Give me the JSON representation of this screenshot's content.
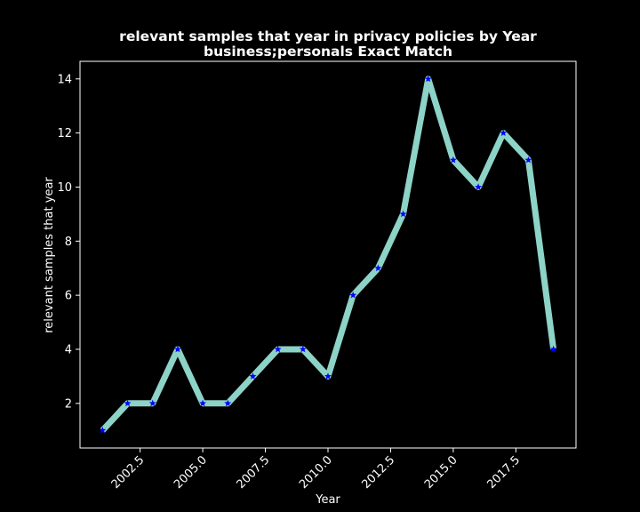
{
  "chart_data": {
    "type": "line",
    "title": "relevant samples that year in privacy policies by Year",
    "subtitle": "business;personals Exact Match",
    "xlabel": "Year",
    "ylabel": "relevant samples that year",
    "xlim": [
      2000.1,
      2019.9
    ],
    "ylim": [
      0.35,
      14.65
    ],
    "xticks": [
      2002.5,
      2005.0,
      2007.5,
      2010.0,
      2012.5,
      2015.0,
      2017.5
    ],
    "xtick_labels": [
      "2002.5",
      "2005.0",
      "2007.5",
      "2010.0",
      "2012.5",
      "2015.0",
      "2017.5"
    ],
    "yticks": [
      2,
      4,
      6,
      8,
      10,
      12,
      14
    ],
    "ytick_labels": [
      "2",
      "4",
      "6",
      "8",
      "10",
      "12",
      "14"
    ],
    "grid": false,
    "series": [
      {
        "x": [
          2001,
          2002,
          2003,
          2004,
          2005,
          2006,
          2007,
          2008,
          2009,
          2010,
          2011,
          2012,
          2013,
          2014,
          2015,
          2016,
          2017,
          2018,
          2019
        ],
        "values": [
          1,
          2,
          2,
          4,
          2,
          2,
          3,
          4,
          4,
          3,
          6,
          7,
          9,
          14,
          11,
          10,
          12,
          11,
          4
        ],
        "line_color": "#8dd3c7",
        "marker": "star",
        "marker_color": "#0000ff"
      }
    ],
    "colors": {
      "background": "#000000",
      "axes": "#ffffff",
      "text": "#ffffff"
    }
  }
}
